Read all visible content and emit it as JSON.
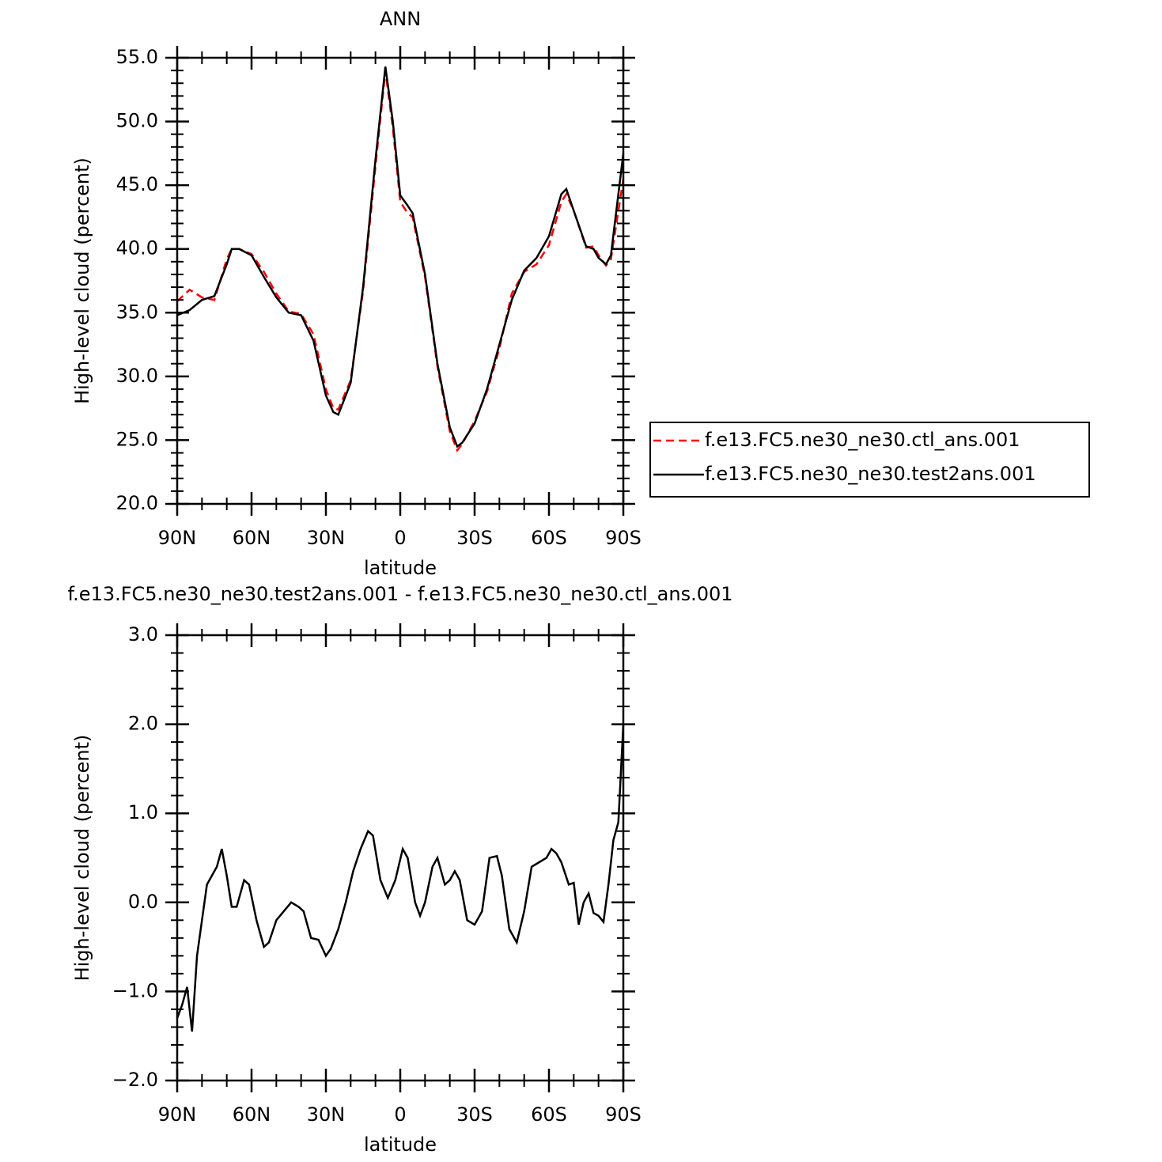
{
  "chart_data": [
    {
      "type": "line",
      "title": "ANN",
      "xlabel": "latitude",
      "ylabel": "High-level cloud (percent)",
      "xlim": [
        90,
        -90
      ],
      "ylim": [
        20,
        55
      ],
      "xticks": [
        {
          "value": 90,
          "label": "90N"
        },
        {
          "value": 60,
          "label": "60N"
        },
        {
          "value": 30,
          "label": "30N"
        },
        0,
        {
          "value": -30,
          "label": "30S"
        },
        {
          "value": -60,
          "label": "60S"
        },
        {
          "value": -90,
          "label": "90S"
        }
      ],
      "yticks": [
        {
          "value": 20,
          "label": "20.0"
        },
        {
          "value": 25,
          "label": "25.0"
        },
        {
          "value": 30,
          "label": "30.0"
        },
        {
          "value": 35,
          "label": "35.0"
        },
        {
          "value": 40,
          "label": "40.0"
        },
        {
          "value": 45,
          "label": "45.0"
        },
        {
          "value": 50,
          "label": "50.0"
        },
        {
          "value": 55,
          "label": "55.0"
        }
      ],
      "x": [
        90,
        85,
        80,
        75,
        70,
        68,
        65,
        60,
        55,
        50,
        45,
        40,
        35,
        30,
        27,
        25,
        20,
        15,
        10,
        6,
        3,
        0,
        -3,
        -5,
        -10,
        -15,
        -20,
        -23,
        -25,
        -30,
        -35,
        -40,
        -45,
        -50,
        -55,
        -60,
        -65,
        -67,
        -70,
        -75,
        -78,
        -80,
        -83,
        -85,
        -90
      ],
      "series": [
        {
          "name": "f.e13.FC5.ne30_ne30.ctl_ans.001",
          "color": "#ff0000",
          "dash": "dashed",
          "values": [
            35.9,
            36.8,
            36.2,
            36.0,
            39.2,
            40.0,
            40.0,
            39.6,
            38.2,
            36.5,
            35.1,
            34.9,
            33.3,
            29.0,
            27.5,
            27.4,
            29.7,
            36.7,
            46.5,
            54.0,
            49.5,
            43.7,
            42.8,
            42.5,
            37.8,
            30.8,
            25.7,
            24.2,
            24.7,
            26.5,
            28.8,
            32.2,
            36.5,
            38.2,
            38.8,
            40.3,
            43.7,
            44.3,
            43.0,
            40.1,
            40.2,
            39.5,
            38.7,
            39.2,
            45.5
          ]
        },
        {
          "name": "f.e13.FC5.ne30_ne30.test2ans.001",
          "color": "#000000",
          "dash": "solid",
          "values": [
            34.8,
            35.2,
            36.0,
            36.3,
            38.8,
            40.0,
            40.0,
            39.5,
            37.8,
            36.2,
            35.0,
            34.8,
            32.8,
            28.5,
            27.2,
            27.0,
            29.5,
            37.0,
            47.0,
            54.3,
            50.0,
            44.2,
            43.4,
            42.8,
            38.0,
            31.0,
            26.0,
            24.5,
            24.8,
            26.3,
            29.0,
            32.5,
            36.0,
            38.3,
            39.3,
            41.0,
            44.3,
            44.7,
            43.0,
            40.2,
            40.0,
            39.3,
            38.8,
            39.5,
            47.5
          ]
        }
      ]
    },
    {
      "type": "line",
      "title": "f.e13.FC5.ne30_ne30.test2ans.001 - f.e13.FC5.ne30_ne30.ctl_ans.001",
      "xlabel": "latitude",
      "ylabel": "High-level cloud (percent)",
      "xlim": [
        90,
        -90
      ],
      "ylim": [
        -2,
        3
      ],
      "xticks": [
        {
          "value": 90,
          "label": "90N"
        },
        {
          "value": 60,
          "label": "60N"
        },
        {
          "value": 30,
          "label": "30N"
        },
        0,
        {
          "value": -30,
          "label": "30S"
        },
        {
          "value": -60,
          "label": "60S"
        },
        {
          "value": -90,
          "label": "90S"
        }
      ],
      "yticks": [
        {
          "value": -2,
          "label": "−2.0"
        },
        {
          "value": -1,
          "label": "−1.0"
        },
        {
          "value": 0,
          "label": "0.0"
        },
        {
          "value": 1,
          "label": "1.0"
        },
        {
          "value": 2,
          "label": "2.0"
        },
        {
          "value": 3,
          "label": "3.0"
        }
      ],
      "x": [
        90,
        88,
        86,
        84,
        82,
        78,
        76,
        74,
        72,
        70,
        68,
        66,
        63,
        61,
        58,
        55,
        53,
        50,
        47,
        44,
        41,
        39,
        36,
        33,
        30,
        28,
        25,
        22,
        19,
        16,
        13,
        11,
        8,
        5,
        2,
        -1,
        -3,
        -6,
        -8,
        -10,
        -13,
        -15,
        -18,
        -20,
        -22,
        -24,
        -27,
        -30,
        -33,
        -36,
        -39,
        -41,
        -44,
        -47,
        -50,
        -53,
        -56,
        -59,
        -61,
        -63,
        -65,
        -68,
        -70,
        -72,
        -74,
        -76,
        -78,
        -80,
        -82,
        -84,
        -86,
        -88,
        -90
      ],
      "series": [
        {
          "color": "#000000",
          "dash": "solid",
          "values": [
            -1.3,
            -1.15,
            -0.95,
            -1.45,
            -0.6,
            0.2,
            0.3,
            0.4,
            0.6,
            0.3,
            -0.05,
            -0.05,
            0.25,
            0.2,
            -0.2,
            -0.5,
            -0.45,
            -0.2,
            -0.1,
            0.0,
            -0.05,
            -0.1,
            -0.4,
            -0.42,
            -0.6,
            -0.52,
            -0.3,
            0.0,
            0.35,
            0.6,
            0.8,
            0.75,
            0.25,
            0.05,
            0.25,
            0.6,
            0.5,
            0.0,
            -0.15,
            0.0,
            0.4,
            0.5,
            0.2,
            0.25,
            0.35,
            0.25,
            -0.2,
            -0.25,
            -0.1,
            0.5,
            0.52,
            0.3,
            -0.3,
            -0.45,
            -0.1,
            0.4,
            0.45,
            0.5,
            0.6,
            0.55,
            0.45,
            0.2,
            0.22,
            -0.25,
            0.0,
            0.1,
            -0.12,
            -0.15,
            -0.22,
            0.2,
            0.7,
            0.9,
            2.0
          ]
        }
      ]
    }
  ]
}
